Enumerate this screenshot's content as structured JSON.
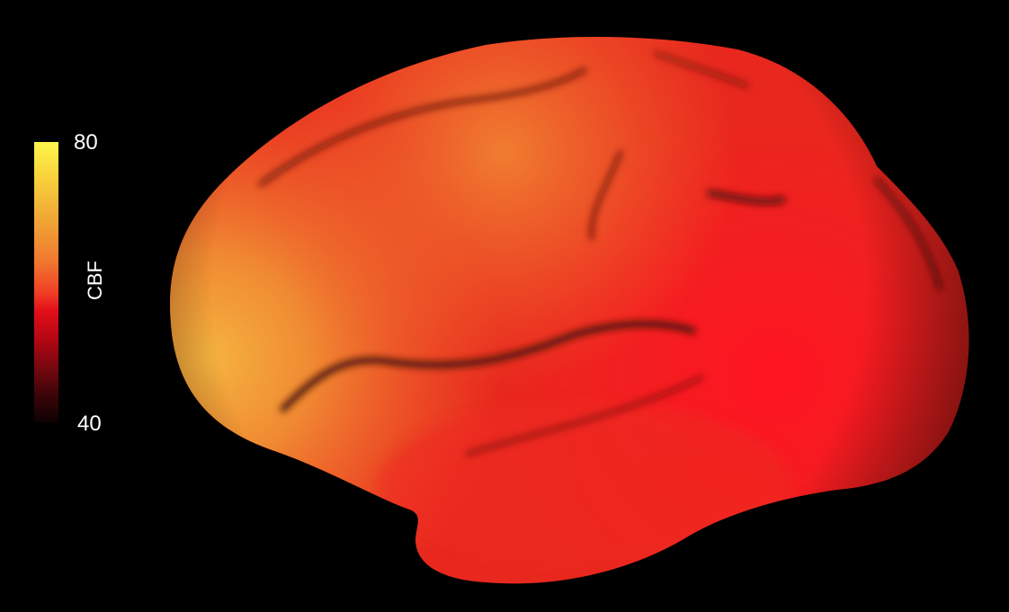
{
  "colorbar": {
    "label": "CBF",
    "max": "80",
    "min": "40",
    "colors": [
      "#fff44c",
      "#f0a535",
      "#f03d25",
      "#e30f1a",
      "#7a0710",
      "#0d0202"
    ]
  },
  "surface": {
    "view": "lateral",
    "base_color": "#e8281e",
    "sulcus_color": "#5a1a0c"
  }
}
